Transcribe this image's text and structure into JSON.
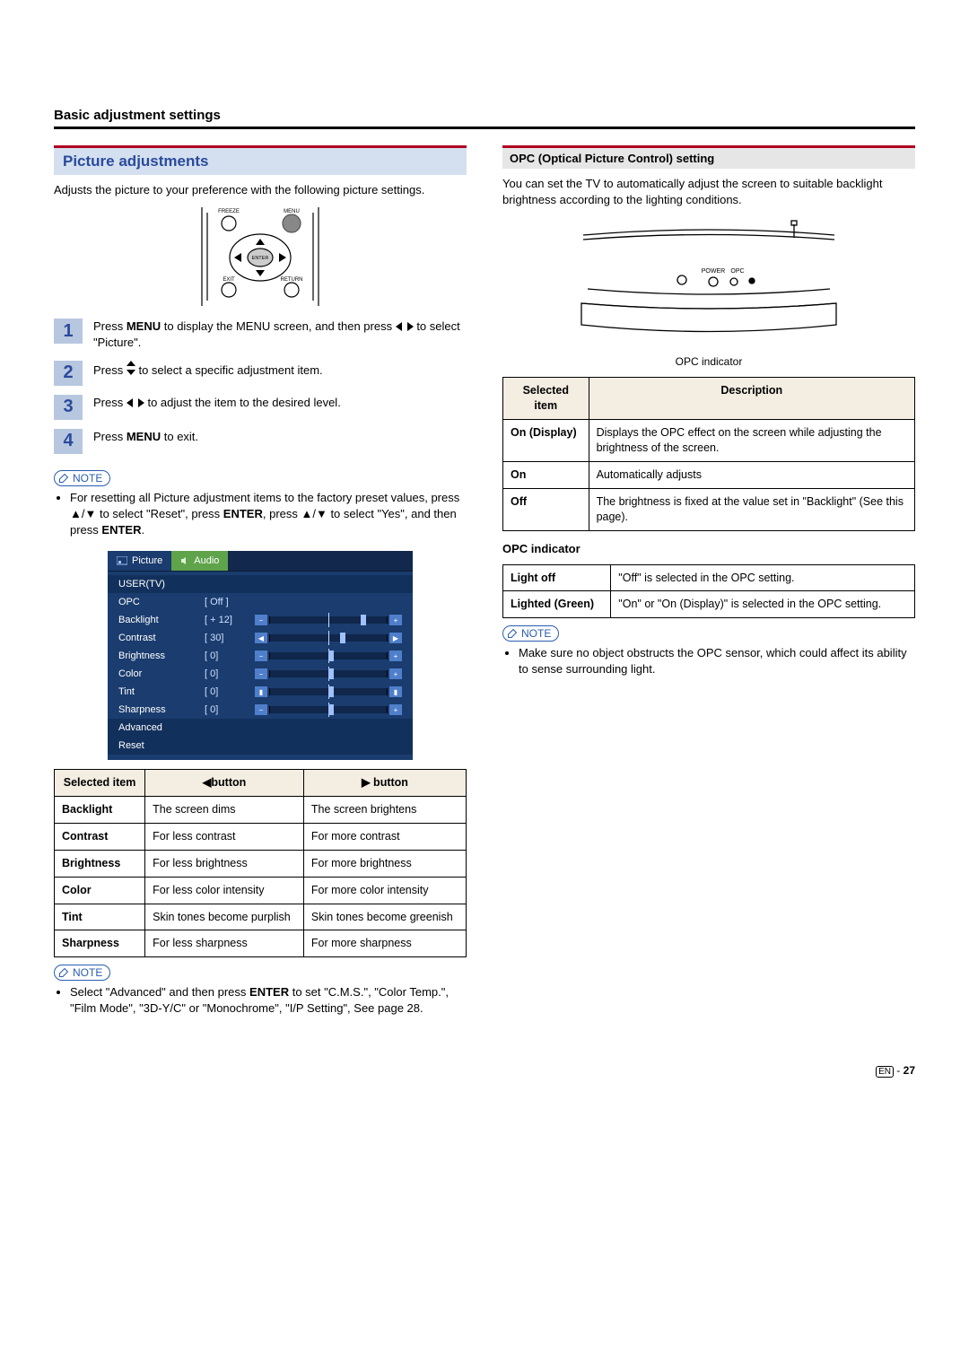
{
  "section_title": "Basic adjustment settings",
  "left": {
    "heading": "Picture adjustments",
    "intro": "Adjusts the picture to your preference with the following picture settings.",
    "remote": {
      "freeze": "FREEZE",
      "menu": "MENU",
      "exit": "EXIT",
      "return": "RETURN",
      "enter": "ENTER"
    },
    "steps": [
      {
        "pre": "Press ",
        "b1": "MENU",
        "mid": " to display the MENU screen, and then press ",
        "arrows": "lr",
        "post": " to select \"Picture\"."
      },
      {
        "pre": "Press ",
        "arrows": "ud",
        "post": " to select a specific adjustment item."
      },
      {
        "pre": "Press ",
        "arrows": "lr",
        "post": " to adjust the item to the desired level."
      },
      {
        "pre": "Press ",
        "b1": "MENU",
        "post": " to exit."
      }
    ],
    "note1_lines": [
      "For resetting all Picture adjustment items to the factory preset values, press ▲/▼ to select \"Reset\", press ",
      "ENTER",
      ", press ▲/▼ to select \"Yes\", and then press ",
      "ENTER",
      "."
    ],
    "osd": {
      "tabs": [
        "Picture",
        "Audio"
      ],
      "user": "USER(TV)",
      "rows": [
        {
          "label": "OPC",
          "val": "[  Off  ]",
          "type": "text"
        },
        {
          "label": "Backlight",
          "val": "[ + 12]",
          "thumb": 0.78,
          "end": "+"
        },
        {
          "label": "Contrast",
          "val": "[    30]",
          "thumb": 0.6,
          "lr": true
        },
        {
          "label": "Brightness",
          "val": "[     0]",
          "thumb": 0.5,
          "end": "+"
        },
        {
          "label": "Color",
          "val": "[     0]",
          "thumb": 0.5,
          "end": "+"
        },
        {
          "label": "Tint",
          "val": "[     0]",
          "thumb": 0.5,
          "bars": true
        },
        {
          "label": "Sharpness",
          "val": "[     0]",
          "thumb": 0.5,
          "end": "+"
        }
      ],
      "footer": [
        "Advanced",
        "Reset"
      ]
    },
    "adj_table": {
      "headers": [
        "Selected item",
        "◀button",
        "▶ button"
      ],
      "rows": [
        [
          "Backlight",
          "The screen dims",
          "The screen brightens"
        ],
        [
          "Contrast",
          "For less contrast",
          "For more contrast"
        ],
        [
          "Brightness",
          "For less brightness",
          "For more brightness"
        ],
        [
          "Color",
          "For less color intensity",
          "For more color intensity"
        ],
        [
          "Tint",
          "Skin tones become purplish",
          "Skin tones become greenish"
        ],
        [
          "Sharpness",
          "For less sharpness",
          "For more sharpness"
        ]
      ]
    },
    "note2": "Select \"Advanced\" and then press ENTER to set \"C.M.S.\", \"Color Temp.\", \"Film Mode\", \"3D-Y/C\" or \"Monochrome\", \"I/P Setting\", See page 28."
  },
  "right": {
    "heading": "OPC (Optical Picture Control) setting",
    "intro": "You can set the TV to automatically adjust the screen to suitable backlight brightness according to the lighting conditions.",
    "tv_labels": {
      "power": "POWER",
      "opc": "OPC",
      "caption": "OPC indicator"
    },
    "opc_table": {
      "headers": [
        "Selected item",
        "Description"
      ],
      "rows": [
        [
          "On (Display)",
          "Displays the OPC effect on the screen while adjusting the brightness of the screen."
        ],
        [
          "On",
          "Automatically adjusts"
        ],
        [
          "Off",
          "The brightness is fixed at the value set in \"Backlight\" (See this page)."
        ]
      ]
    },
    "ind_head": "OPC indicator",
    "ind_table": {
      "rows": [
        [
          "Light off",
          "\"Off\" is selected in the OPC setting."
        ],
        [
          "Lighted (Green)",
          "\"On\" or \"On (Display)\" is selected in the OPC setting."
        ]
      ]
    },
    "note": "Make sure no object obstructs the OPC sensor, which could affect its ability to sense surrounding light."
  },
  "page": {
    "lang": "EN",
    "num": "27"
  },
  "note_label": "NOTE"
}
